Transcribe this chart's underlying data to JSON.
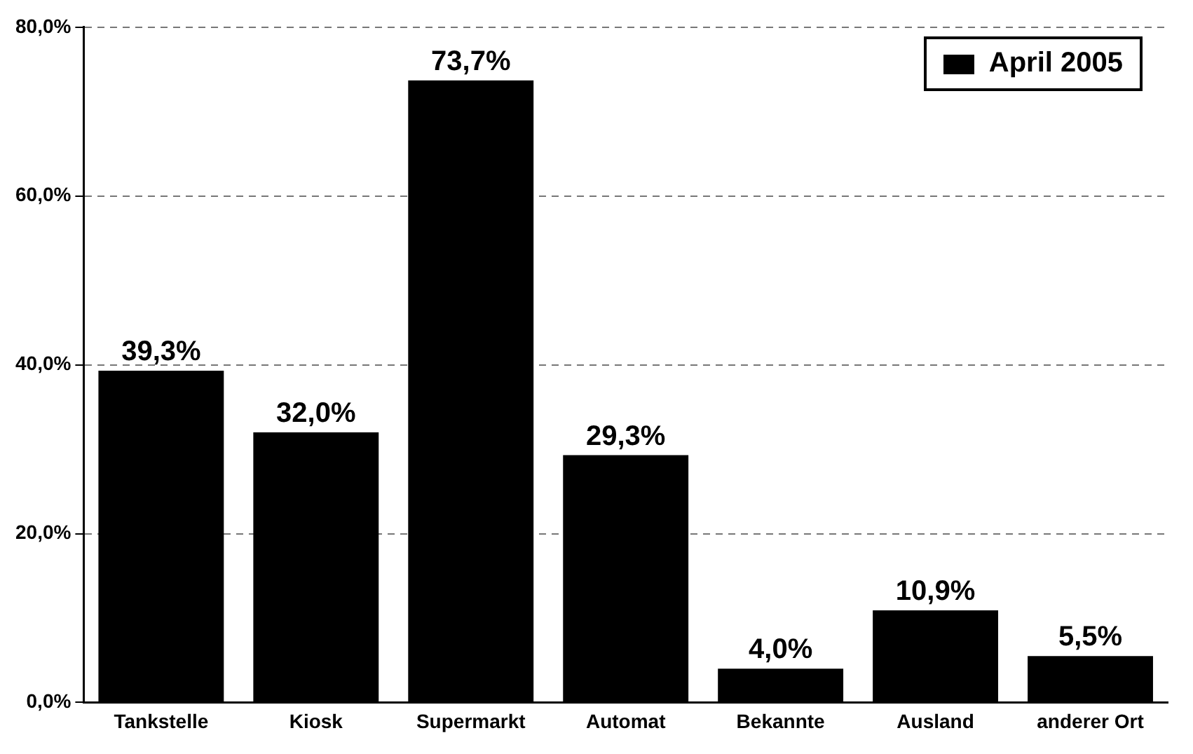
{
  "chart_data": {
    "type": "bar",
    "categories": [
      "Tankstelle",
      "Kiosk",
      "Supermarkt",
      "Automat",
      "Bekannte",
      "Ausland",
      "anderer Ort"
    ],
    "series": [
      {
        "name": "April 2005",
        "color": "#000000",
        "values": [
          39.3,
          32.0,
          73.7,
          29.3,
          4.0,
          10.9,
          5.5
        ],
        "value_labels": [
          "39,3%",
          "32,0%",
          "73,7%",
          "29,3%",
          "4,0%",
          "10,9%",
          "5,5%"
        ]
      }
    ],
    "ylim": [
      0,
      80
    ],
    "yticks": [
      {
        "value": 0,
        "label": "0,0%"
      },
      {
        "value": 20,
        "label": "20,0%"
      },
      {
        "value": 40,
        "label": "40,0%"
      },
      {
        "value": 60,
        "label": "60,0%"
      },
      {
        "value": 80,
        "label": "80,0%"
      }
    ],
    "grid": "y",
    "line_style": "dashed",
    "legend": "top right"
  }
}
